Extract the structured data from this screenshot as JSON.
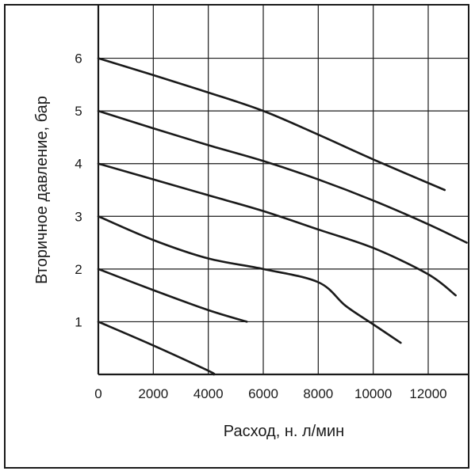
{
  "chart_data": {
    "type": "line",
    "title": "",
    "xlabel": "Расход, н. л/мин",
    "ylabel": "Вторичное давление, бар",
    "xlim": [
      0,
      13500
    ],
    "ylim": [
      0,
      7
    ],
    "x_ticks": [
      "0",
      "2000",
      "4000",
      "6000",
      "8000",
      "10000",
      "12000"
    ],
    "y_ticks": [
      "1",
      "2",
      "3",
      "4",
      "5",
      "6"
    ],
    "grid": true,
    "colors": {
      "line": "#1a1a1a",
      "grid": "#1a1a1a",
      "background": "#ffffff"
    },
    "series": [
      {
        "x": [
          0,
          2000,
          4000,
          4200
        ],
        "y": [
          1.0,
          0.55,
          0.07,
          0.0
        ]
      },
      {
        "x": [
          0,
          2000,
          4000,
          5400
        ],
        "y": [
          2.0,
          1.6,
          1.22,
          1.0
        ]
      },
      {
        "x": [
          0,
          2000,
          4000,
          6000,
          8000,
          9000,
          10000,
          11000
        ],
        "y": [
          3.0,
          2.55,
          2.2,
          2.0,
          1.75,
          1.3,
          0.95,
          0.6
        ]
      },
      {
        "x": [
          0,
          2000,
          4000,
          6000,
          8000,
          10000,
          12000,
          13000
        ],
        "y": [
          4.0,
          3.7,
          3.4,
          3.1,
          2.75,
          2.4,
          1.9,
          1.5
        ]
      },
      {
        "x": [
          0,
          2000,
          4000,
          6000,
          8000,
          10000,
          12000,
          13400
        ],
        "y": [
          5.0,
          4.67,
          4.35,
          4.05,
          3.7,
          3.3,
          2.85,
          2.5
        ]
      },
      {
        "x": [
          0,
          2000,
          4000,
          6000,
          8000,
          10000,
          12600
        ],
        "y": [
          6.0,
          5.68,
          5.35,
          5.0,
          4.55,
          4.08,
          3.5
        ]
      }
    ]
  }
}
